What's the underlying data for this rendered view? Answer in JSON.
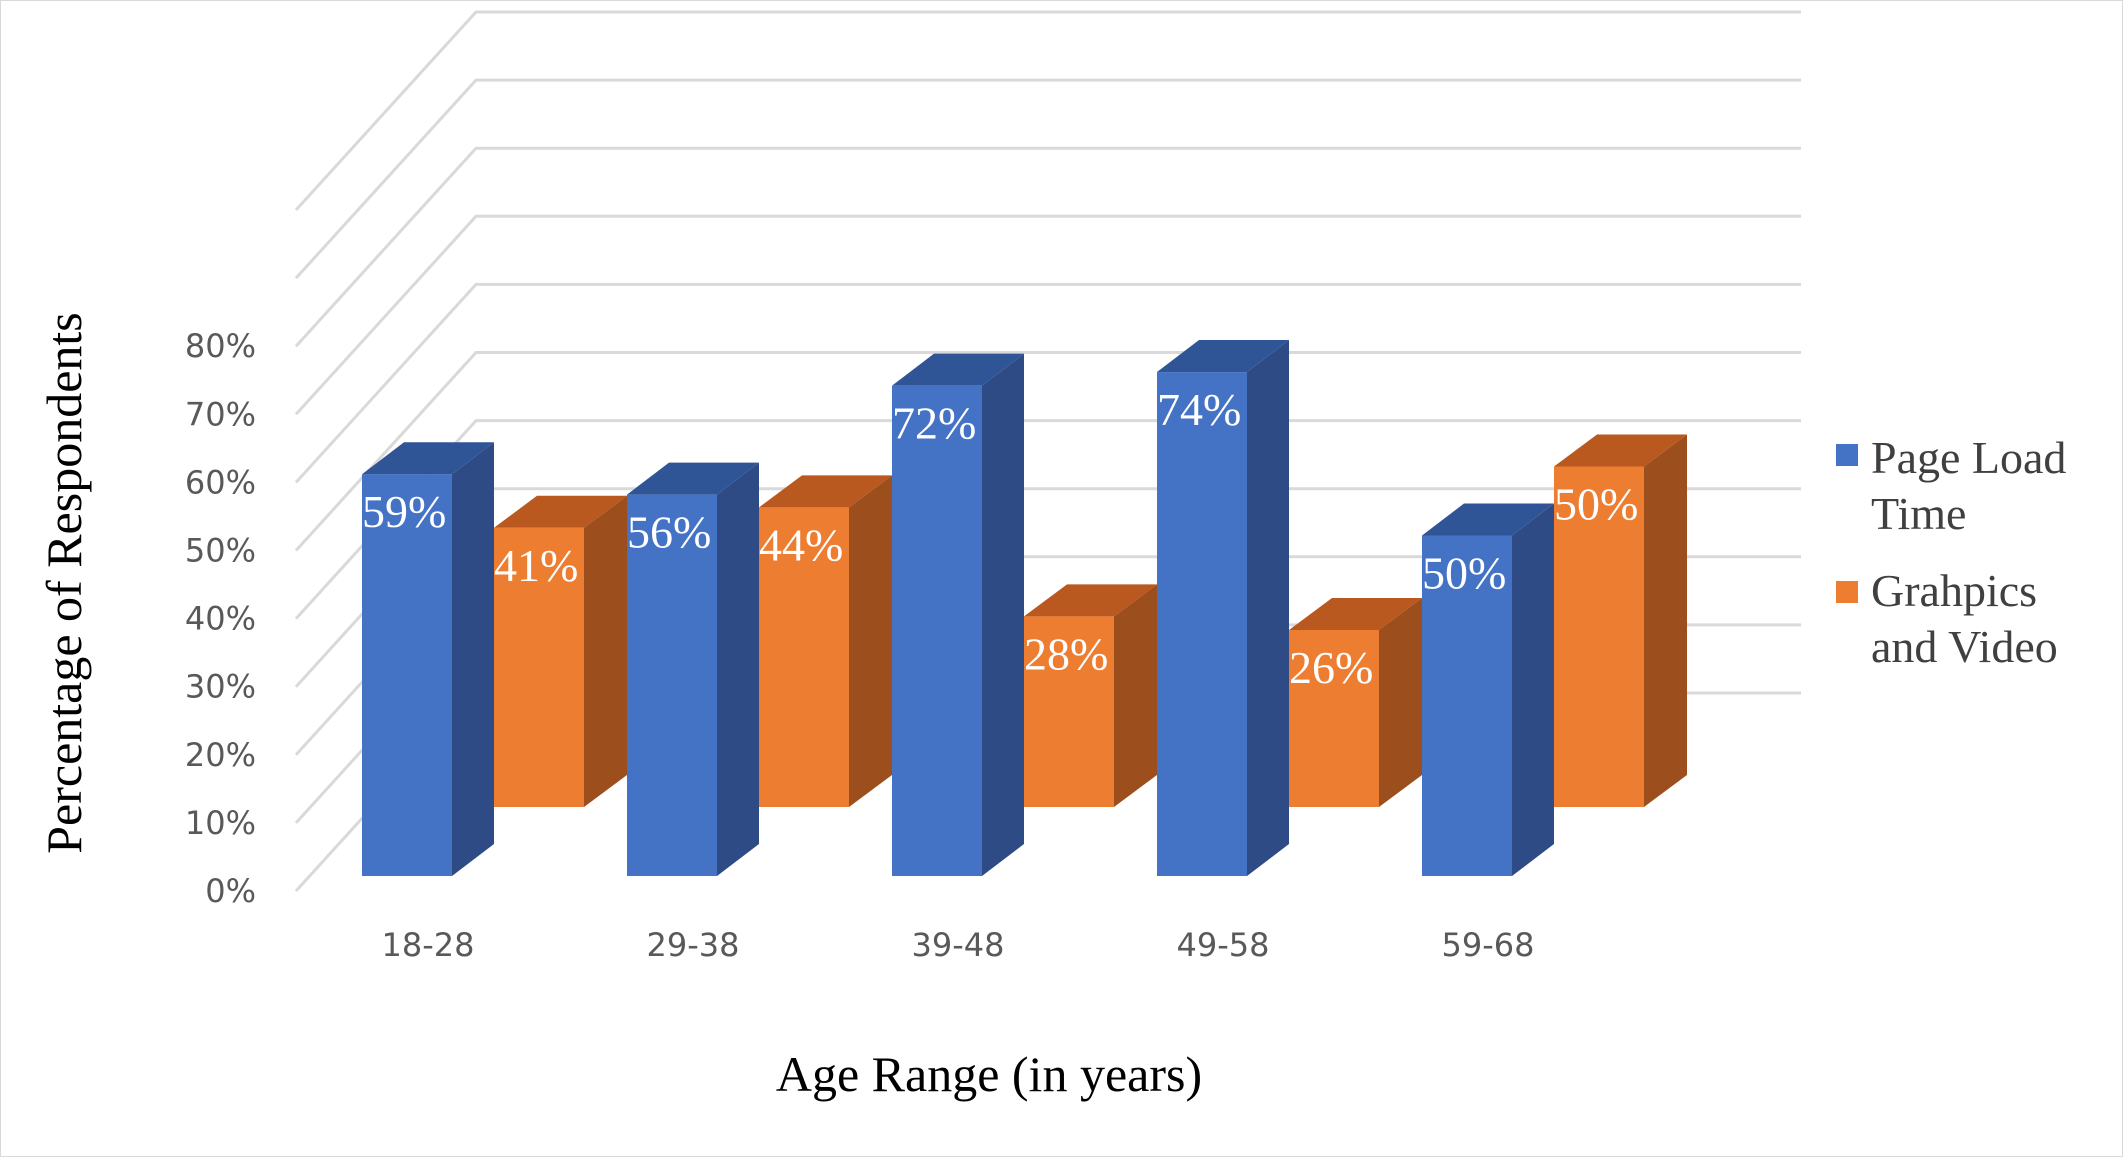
{
  "chart_data": {
    "type": "bar",
    "style": "3d-clustered-column",
    "categories": [
      "18-28",
      "29-38",
      "39-48",
      "49-58",
      "59-68"
    ],
    "series": [
      {
        "name": "Page Load Time",
        "values": [
          59,
          56,
          72,
          74,
          50
        ],
        "labels": [
          "59%",
          "56%",
          "72%",
          "74%",
          "50%"
        ],
        "color": "#4472c4",
        "side_color": "#2f4b85",
        "top_color": "#2f5597"
      },
      {
        "name": "Grahpics and Video",
        "values": [
          41,
          44,
          28,
          26,
          50
        ],
        "labels": [
          "41%",
          "44%",
          "28%",
          "26%",
          "50%"
        ],
        "color": "#ed7d31",
        "side_color": "#9c4f1d",
        "top_color": "#b9581f"
      }
    ],
    "y_ticks": [
      "0%",
      "10%",
      "20%",
      "30%",
      "40%",
      "50%",
      "60%",
      "70%",
      "80%"
    ],
    "ylim": [
      0,
      100
    ],
    "xlabel": "Age Range (in years)",
    "ylabel": "Percentage of Respondents",
    "grid": true,
    "legend": "right"
  }
}
